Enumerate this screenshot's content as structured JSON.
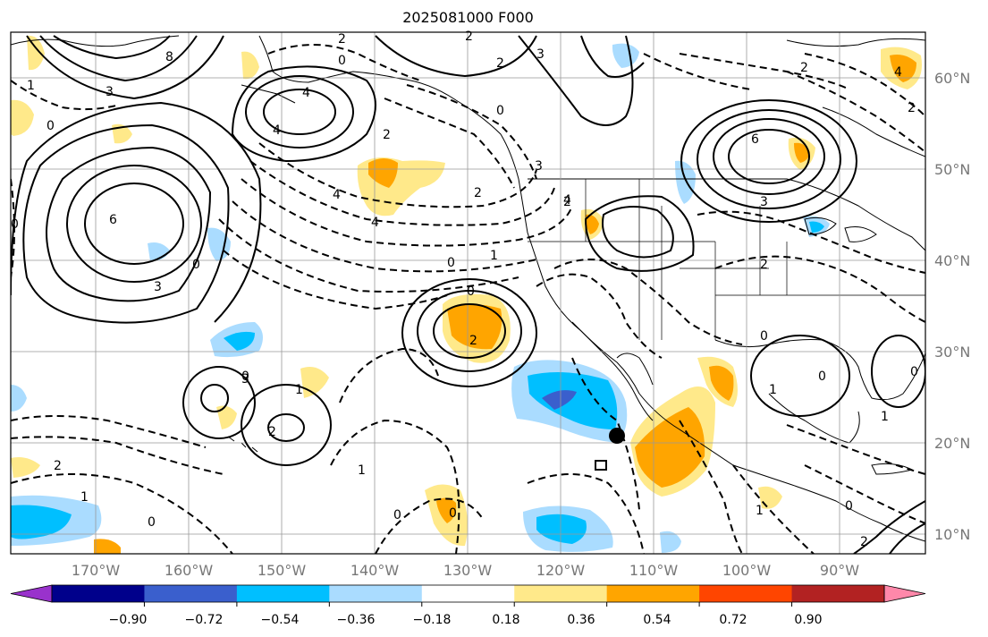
{
  "title": "2025081000 F000",
  "lat_labels": [
    "60°N",
    "50°N",
    "40°N",
    "30°N",
    "20°N",
    "10°N"
  ],
  "lon_labels": [
    "170°W",
    "160°W",
    "150°W",
    "140°W",
    "130°W",
    "120°W",
    "110°W",
    "100°W",
    "90°W"
  ],
  "colorbar": {
    "ticks": [
      "−0.90",
      "−0.72",
      "−0.54",
      "−0.36",
      "−0.18",
      "0.18",
      "0.36",
      "0.54",
      "0.72",
      "0.90"
    ],
    "colors": [
      "#9932cc",
      "#00008b",
      "#3a5fcd",
      "#00bfff",
      "#aadcff",
      "#ffffff",
      "#ffe98a",
      "#ffa500",
      "#ff4500",
      "#b22222",
      "#ff88aa"
    ]
  },
  "contour_labels": [
    "0",
    "6",
    "8",
    "2",
    "2",
    "0",
    "3",
    "3",
    "4",
    "4",
    "3",
    "0",
    "4",
    "6",
    "3",
    "1",
    "2",
    "0",
    "2",
    "4",
    "1",
    "1",
    "0",
    "3",
    "2",
    "2",
    "4",
    "2",
    "2",
    "4",
    "0",
    "3",
    "0",
    "2",
    "0",
    "1",
    "2",
    "0",
    "0",
    "2",
    "1",
    "0",
    "1",
    "0",
    "0",
    "2",
    "2",
    "1",
    "0",
    "1",
    "0"
  ],
  "marker": {
    "type": "station-dot",
    "color": "#000000"
  }
}
